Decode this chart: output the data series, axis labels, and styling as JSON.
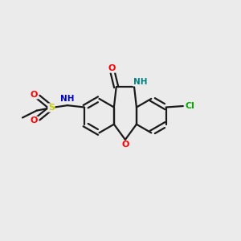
{
  "bg_color": "#ebebeb",
  "bond_color": "#1a1a1a",
  "atom_colors": {
    "O": "#ff0000",
    "N": "#0000cc",
    "NH": "#008080",
    "S": "#cccc00",
    "Cl": "#00aa00"
  },
  "figsize": [
    3.0,
    3.0
  ],
  "dpi": 100,
  "BL": 0.72
}
